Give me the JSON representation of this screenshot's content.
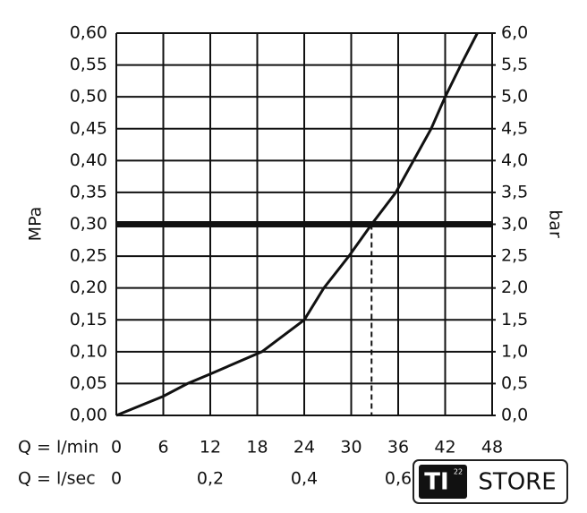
{
  "chart_data": {
    "type": "line",
    "ylabel": "MPa",
    "y2label": "bar",
    "xlabel": "Q = l/min",
    "x2label": "Q = l/sec",
    "x": [
      0,
      6,
      9.1,
      12,
      18.6,
      24,
      26.5,
      29.7,
      32.6,
      35.7,
      40.2,
      42,
      44,
      46.1
    ],
    "values": [
      0,
      0.03,
      0.05,
      0.065,
      0.1,
      0.15,
      0.2,
      0.25,
      0.3,
      0.35,
      0.45,
      0.5,
      0.55,
      0.6
    ],
    "color": "#111111",
    "reference_line": {
      "y": 0.3,
      "x": 32.6
    },
    "xlim": [
      0,
      48
    ],
    "xticks": [
      0,
      6,
      12,
      18,
      24,
      30,
      36,
      42,
      48
    ],
    "x2lim": [
      0,
      0.8
    ],
    "x2ticks": [
      {
        "value": 0,
        "label": "0"
      },
      {
        "value": 0.2,
        "label": "0,2"
      },
      {
        "value": 0.4,
        "label": "0,4"
      },
      {
        "value": 0.6,
        "label": "0,6"
      }
    ],
    "ylim": [
      0,
      0.6
    ],
    "yticks": [
      {
        "value": 0,
        "label": "0,00"
      },
      {
        "value": 0.05,
        "label": "0,05"
      },
      {
        "value": 0.1,
        "label": "0,10"
      },
      {
        "value": 0.15,
        "label": "0,15"
      },
      {
        "value": 0.2,
        "label": "0,20"
      },
      {
        "value": 0.25,
        "label": "0,25"
      },
      {
        "value": 0.3,
        "label": "0,30"
      },
      {
        "value": 0.35,
        "label": "0,35"
      },
      {
        "value": 0.4,
        "label": "0,40"
      },
      {
        "value": 0.45,
        "label": "0,45"
      },
      {
        "value": 0.5,
        "label": "0,50"
      },
      {
        "value": 0.55,
        "label": "0,55"
      },
      {
        "value": 0.6,
        "label": "0,60"
      }
    ],
    "y2lim": [
      0,
      6
    ],
    "y2ticks": [
      {
        "value": 0,
        "label": "0,0"
      },
      {
        "value": 0.5,
        "label": "0,5"
      },
      {
        "value": 1,
        "label": "1,0"
      },
      {
        "value": 1.5,
        "label": "1,5"
      },
      {
        "value": 2,
        "label": "2,0"
      },
      {
        "value": 2.5,
        "label": "2,5"
      },
      {
        "value": 3,
        "label": "3,0"
      },
      {
        "value": 3.5,
        "label": "3,5"
      },
      {
        "value": 4,
        "label": "4,0"
      },
      {
        "value": 4.5,
        "label": "4,5"
      },
      {
        "value": 5,
        "label": "5,0"
      },
      {
        "value": 5.5,
        "label": "5,5"
      },
      {
        "value": 6,
        "label": "6,0"
      }
    ],
    "grid": true
  },
  "logo": {
    "mark": "TI",
    "sup": "22",
    "text": "STORE"
  }
}
